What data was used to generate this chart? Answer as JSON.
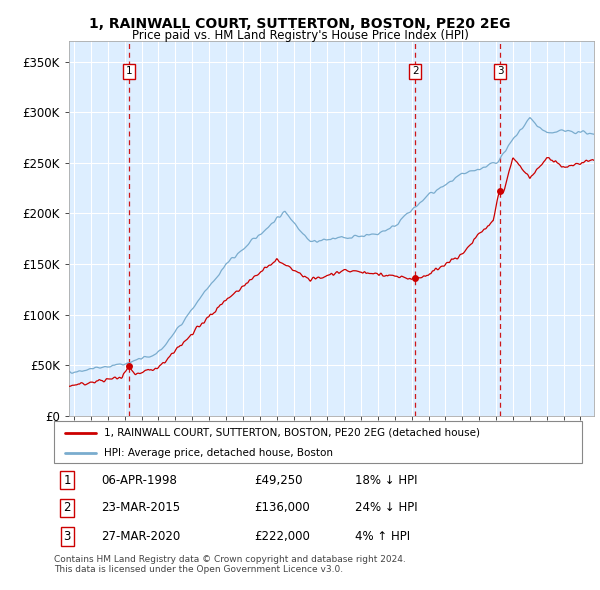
{
  "title": "1, RAINWALL COURT, SUTTERTON, BOSTON, PE20 2EG",
  "subtitle": "Price paid vs. HM Land Registry's House Price Index (HPI)",
  "legend_label_red": "1, RAINWALL COURT, SUTTERTON, BOSTON, PE20 2EG (detached house)",
  "legend_label_blue": "HPI: Average price, detached house, Boston",
  "transactions": [
    {
      "num": 1,
      "date": "06-APR-1998",
      "price": 49250,
      "pct": "18%",
      "dir": "↓",
      "x_year": 1998.27
    },
    {
      "num": 2,
      "date": "23-MAR-2015",
      "price": 136000,
      "pct": "24%",
      "dir": "↓",
      "x_year": 2015.22
    },
    {
      "num": 3,
      "date": "27-MAR-2020",
      "price": 222000,
      "pct": "4%",
      "dir": "↑",
      "x_year": 2020.23
    }
  ],
  "footnote": "Contains HM Land Registry data © Crown copyright and database right 2024.\nThis data is licensed under the Open Government Licence v3.0.",
  "ylim": [
    0,
    370000
  ],
  "xlim_start": 1994.7,
  "xlim_end": 2025.8,
  "red_color": "#cc0000",
  "blue_color": "#7aacce",
  "dashed_color": "#cc0000",
  "plot_bg_color": "#ddeeff",
  "background_color": "#ffffff",
  "grid_color": "#ffffff"
}
